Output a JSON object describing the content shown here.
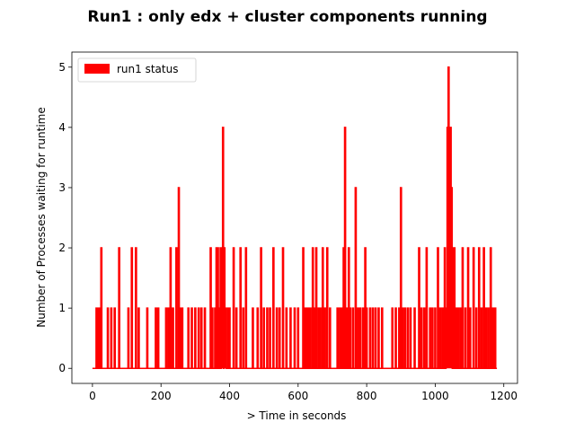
{
  "chart_data": {
    "type": "line",
    "title": "Run1 : only edx + cluster components running",
    "xlabel": "> Time  in seconds",
    "ylabel": "Number of Processes waiting for runtime",
    "xlim": [
      -60,
      1240
    ],
    "ylim": [
      -0.25,
      5.25
    ],
    "xticks": [
      0,
      200,
      400,
      600,
      800,
      1000,
      1200
    ],
    "yticks": [
      0,
      1,
      2,
      3,
      4,
      5
    ],
    "grid": false,
    "legend": {
      "placement": "top-left"
    },
    "series": [
      {
        "name": "run1 status",
        "color": "#ff0000",
        "x_start": 0,
        "x_end": 1180,
        "baseline": 0,
        "spikes": [
          {
            "x": 12,
            "y": 1
          },
          {
            "x": 16,
            "y": 1
          },
          {
            "x": 20,
            "y": 1
          },
          {
            "x": 26,
            "y": 2
          },
          {
            "x": 45,
            "y": 1
          },
          {
            "x": 55,
            "y": 1
          },
          {
            "x": 65,
            "y": 1
          },
          {
            "x": 78,
            "y": 2
          },
          {
            "x": 105,
            "y": 1
          },
          {
            "x": 115,
            "y": 2
          },
          {
            "x": 127,
            "y": 2
          },
          {
            "x": 135,
            "y": 1
          },
          {
            "x": 160,
            "y": 1
          },
          {
            "x": 185,
            "y": 1
          },
          {
            "x": 192,
            "y": 1
          },
          {
            "x": 215,
            "y": 1
          },
          {
            "x": 222,
            "y": 1
          },
          {
            "x": 228,
            "y": 2
          },
          {
            "x": 235,
            "y": 1
          },
          {
            "x": 245,
            "y": 2
          },
          {
            "x": 252,
            "y": 3
          },
          {
            "x": 258,
            "y": 1
          },
          {
            "x": 262,
            "y": 1
          },
          {
            "x": 280,
            "y": 1
          },
          {
            "x": 290,
            "y": 1
          },
          {
            "x": 300,
            "y": 1
          },
          {
            "x": 310,
            "y": 1
          },
          {
            "x": 318,
            "y": 1
          },
          {
            "x": 328,
            "y": 1
          },
          {
            "x": 345,
            "y": 2
          },
          {
            "x": 350,
            "y": 1
          },
          {
            "x": 358,
            "y": 1
          },
          {
            "x": 362,
            "y": 2
          },
          {
            "x": 366,
            "y": 2
          },
          {
            "x": 370,
            "y": 1
          },
          {
            "x": 374,
            "y": 2
          },
          {
            "x": 378,
            "y": 2
          },
          {
            "x": 381,
            "y": 4
          },
          {
            "x": 385,
            "y": 2
          },
          {
            "x": 388,
            "y": 1
          },
          {
            "x": 395,
            "y": 1
          },
          {
            "x": 400,
            "y": 1
          },
          {
            "x": 412,
            "y": 2
          },
          {
            "x": 420,
            "y": 1
          },
          {
            "x": 432,
            "y": 2
          },
          {
            "x": 440,
            "y": 1
          },
          {
            "x": 448,
            "y": 2
          },
          {
            "x": 468,
            "y": 1
          },
          {
            "x": 482,
            "y": 1
          },
          {
            "x": 492,
            "y": 2
          },
          {
            "x": 500,
            "y": 1
          },
          {
            "x": 510,
            "y": 1
          },
          {
            "x": 518,
            "y": 1
          },
          {
            "x": 528,
            "y": 2
          },
          {
            "x": 538,
            "y": 1
          },
          {
            "x": 546,
            "y": 1
          },
          {
            "x": 556,
            "y": 2
          },
          {
            "x": 566,
            "y": 1
          },
          {
            "x": 578,
            "y": 1
          },
          {
            "x": 590,
            "y": 1
          },
          {
            "x": 600,
            "y": 1
          },
          {
            "x": 615,
            "y": 2
          },
          {
            "x": 620,
            "y": 1
          },
          {
            "x": 625,
            "y": 1
          },
          {
            "x": 630,
            "y": 1
          },
          {
            "x": 636,
            "y": 1
          },
          {
            "x": 643,
            "y": 2
          },
          {
            "x": 648,
            "y": 1
          },
          {
            "x": 653,
            "y": 2
          },
          {
            "x": 660,
            "y": 1
          },
          {
            "x": 665,
            "y": 1
          },
          {
            "x": 672,
            "y": 2
          },
          {
            "x": 678,
            "y": 1
          },
          {
            "x": 685,
            "y": 2
          },
          {
            "x": 693,
            "y": 1
          },
          {
            "x": 715,
            "y": 1
          },
          {
            "x": 722,
            "y": 1
          },
          {
            "x": 728,
            "y": 1
          },
          {
            "x": 733,
            "y": 2
          },
          {
            "x": 737,
            "y": 4
          },
          {
            "x": 742,
            "y": 1
          },
          {
            "x": 748,
            "y": 2
          },
          {
            "x": 752,
            "y": 1
          },
          {
            "x": 760,
            "y": 1
          },
          {
            "x": 768,
            "y": 3
          },
          {
            "x": 775,
            "y": 1
          },
          {
            "x": 782,
            "y": 1
          },
          {
            "x": 790,
            "y": 1
          },
          {
            "x": 796,
            "y": 2
          },
          {
            "x": 800,
            "y": 1
          },
          {
            "x": 810,
            "y": 1
          },
          {
            "x": 818,
            "y": 1
          },
          {
            "x": 826,
            "y": 1
          },
          {
            "x": 835,
            "y": 1
          },
          {
            "x": 845,
            "y": 1
          },
          {
            "x": 875,
            "y": 1
          },
          {
            "x": 885,
            "y": 1
          },
          {
            "x": 895,
            "y": 1
          },
          {
            "x": 900,
            "y": 3
          },
          {
            "x": 905,
            "y": 1
          },
          {
            "x": 912,
            "y": 1
          },
          {
            "x": 920,
            "y": 1
          },
          {
            "x": 928,
            "y": 1
          },
          {
            "x": 940,
            "y": 1
          },
          {
            "x": 953,
            "y": 2
          },
          {
            "x": 960,
            "y": 1
          },
          {
            "x": 968,
            "y": 1
          },
          {
            "x": 975,
            "y": 2
          },
          {
            "x": 985,
            "y": 1
          },
          {
            "x": 992,
            "y": 1
          },
          {
            "x": 1000,
            "y": 1
          },
          {
            "x": 1008,
            "y": 2
          },
          {
            "x": 1015,
            "y": 1
          },
          {
            "x": 1022,
            "y": 1
          },
          {
            "x": 1028,
            "y": 2
          },
          {
            "x": 1033,
            "y": 1
          },
          {
            "x": 1036,
            "y": 4
          },
          {
            "x": 1039,
            "y": 5
          },
          {
            "x": 1042,
            "y": 4
          },
          {
            "x": 1045,
            "y": 4
          },
          {
            "x": 1048,
            "y": 3
          },
          {
            "x": 1052,
            "y": 2
          },
          {
            "x": 1056,
            "y": 2
          },
          {
            "x": 1062,
            "y": 1
          },
          {
            "x": 1068,
            "y": 1
          },
          {
            "x": 1075,
            "y": 1
          },
          {
            "x": 1080,
            "y": 2
          },
          {
            "x": 1088,
            "y": 1
          },
          {
            "x": 1096,
            "y": 2
          },
          {
            "x": 1102,
            "y": 1
          },
          {
            "x": 1112,
            "y": 2
          },
          {
            "x": 1120,
            "y": 1
          },
          {
            "x": 1128,
            "y": 2
          },
          {
            "x": 1135,
            "y": 1
          },
          {
            "x": 1142,
            "y": 2
          },
          {
            "x": 1148,
            "y": 1
          },
          {
            "x": 1155,
            "y": 1
          },
          {
            "x": 1162,
            "y": 2
          },
          {
            "x": 1166,
            "y": 1
          },
          {
            "x": 1170,
            "y": 1
          },
          {
            "x": 1175,
            "y": 1
          }
        ]
      }
    ]
  }
}
